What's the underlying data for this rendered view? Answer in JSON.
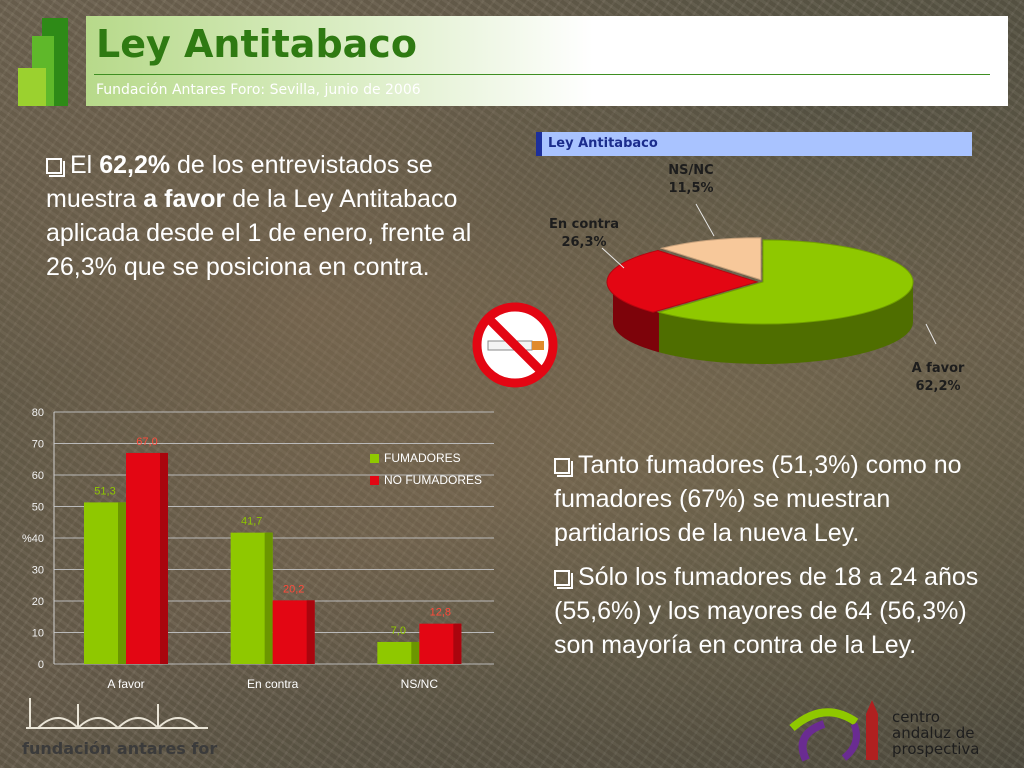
{
  "header": {
    "title": "Ley Antitabaco",
    "subtitle": "Fundación Antares Foro: Sevilla, junio de 2006"
  },
  "text": {
    "para1": {
      "p1": "El ",
      "b1": "62,2%",
      "p2": " de los entrevistados se muestra ",
      "b2": "a favor",
      "p3": " de la Ley Antitabaco aplicada desde el 1 de enero, frente al 26,3% que se posiciona en contra."
    },
    "para2": "Tanto fumadores (51,3%) como no fumadores (67%) se muestran partidarios de la nueva Ley.",
    "para3": "Sólo los fumadores de 18 a 24 años (55,6%) y los mayores de 64 (56,3%) son mayoría en contra de la Ley."
  },
  "logos": {
    "foundation": "fundación antares foro",
    "centro_line1": "centro",
    "centro_line2": "andaluz de",
    "centro_line3": "prospectiva"
  },
  "colors": {
    "green": "#8fc800",
    "red": "#e30613",
    "peach": "#f7c89a",
    "title_green": "#2f7a12"
  },
  "chart_data": [
    {
      "type": "pie",
      "title": "Ley Antitabaco",
      "slices": [
        {
          "label": "A favor",
          "value": 62.2,
          "display": "62,2%",
          "color": "#8fc800"
        },
        {
          "label": "En contra",
          "value": 26.3,
          "display": "26,3%",
          "color": "#e30613"
        },
        {
          "label": "NS/NC",
          "value": 11.5,
          "display": "11,5%",
          "color": "#f7c89a"
        }
      ]
    },
    {
      "type": "bar",
      "categories": [
        "A favor",
        "En contra",
        "NS/NC"
      ],
      "series": [
        {
          "name": "FUMADORES",
          "values": [
            51.3,
            41.7,
            7.0
          ],
          "labels": [
            "51,3",
            "41,7",
            "7,0"
          ],
          "color": "#8fc800"
        },
        {
          "name": "NO FUMADORES",
          "values": [
            67.0,
            20.2,
            12.8
          ],
          "labels": [
            "67,0",
            "20,2",
            "12,8"
          ],
          "color": "#e30613"
        }
      ],
      "ylabel": "%",
      "ylim": [
        0,
        80
      ],
      "yticks": [
        0,
        10,
        20,
        30,
        40,
        50,
        60,
        70,
        80
      ],
      "grid": true,
      "legend": "top-right"
    }
  ]
}
